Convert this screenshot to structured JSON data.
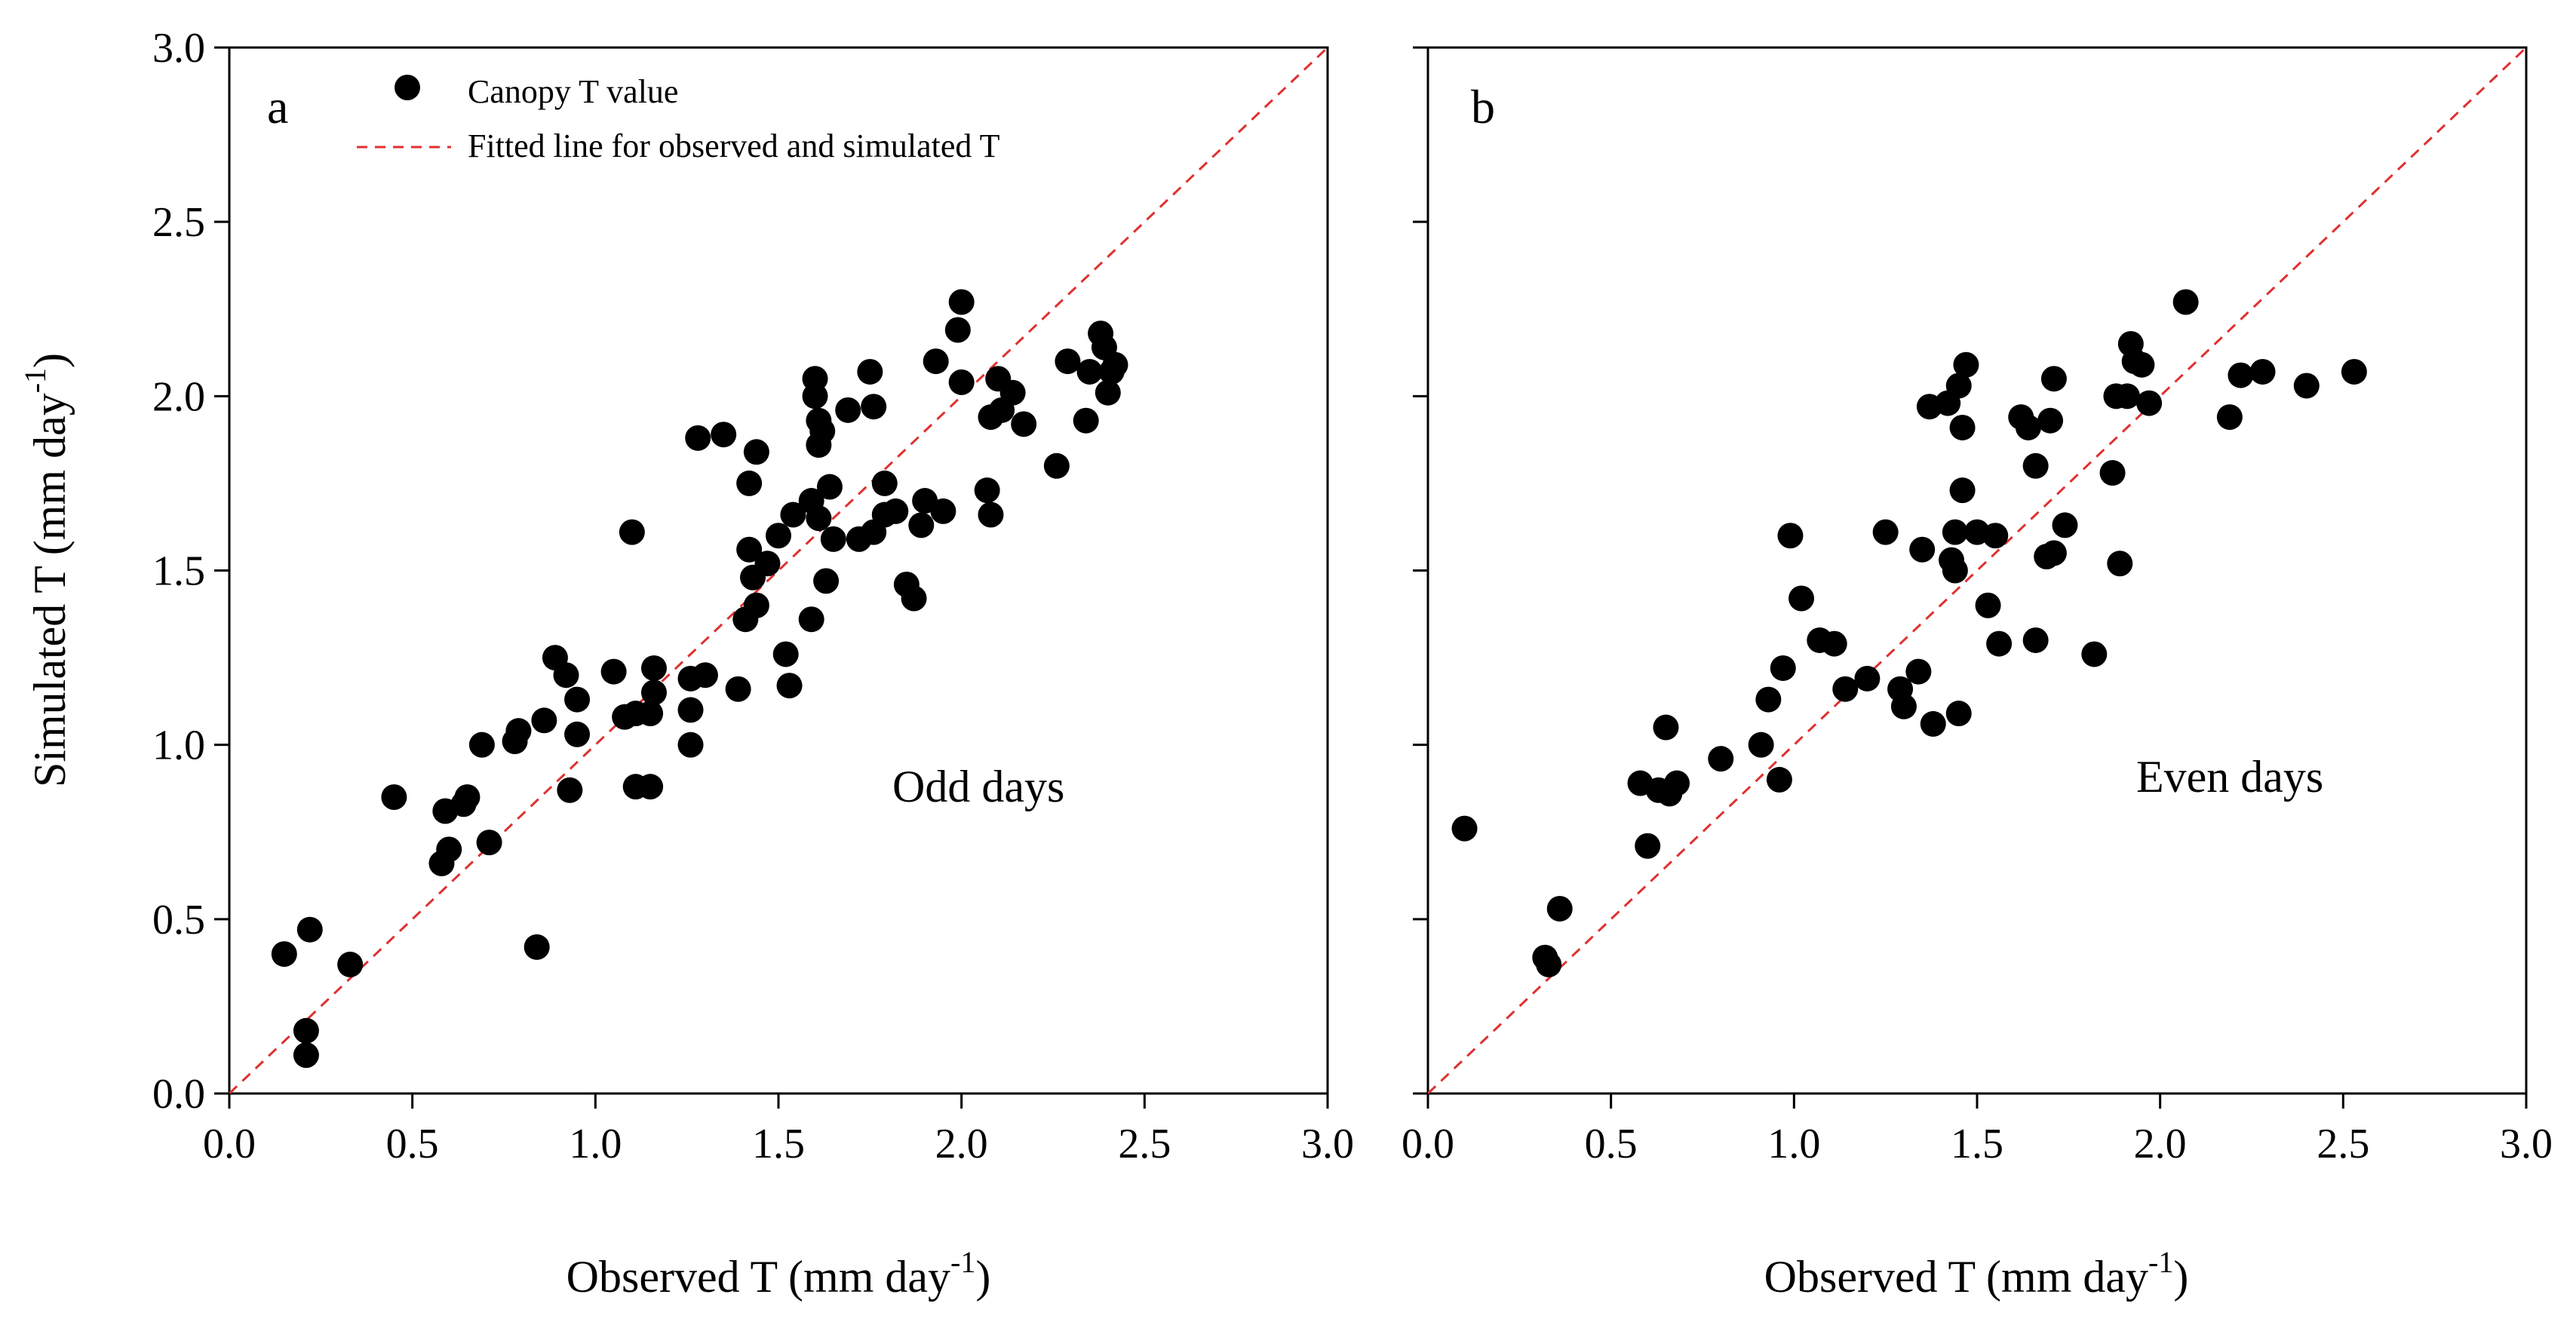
{
  "chart_data": [
    {
      "type": "scatter",
      "panel_label": "a",
      "annotation": "Odd days",
      "xlabel": "Observed T (mm day",
      "xlabel_sup": "-1",
      "xlabel_end": ")",
      "ylabel": "Simulated T (mm day",
      "ylabel_sup": "-1",
      "ylabel_end": ")",
      "xlim": [
        0,
        3.0
      ],
      "ylim": [
        0,
        3.0
      ],
      "xticks": [
        "0.0",
        "0.5",
        "1.0",
        "1.5",
        "2.0",
        "2.5",
        "3.0"
      ],
      "yticks": [
        "0.0",
        "0.5",
        "1.0",
        "1.5",
        "2.0",
        "2.5",
        "3.0"
      ],
      "legend": {
        "points_label": "Canopy T value",
        "line_label": "Fitted line for observed and simulated T",
        "position": "top-left"
      },
      "fit_line": {
        "x": [
          0,
          3.0
        ],
        "y": [
          0,
          3.0
        ],
        "color": "#e03030",
        "style": "dashed"
      },
      "series": [
        {
          "name": "Canopy T value",
          "points": [
            [
              0.15,
              0.4
            ],
            [
              0.21,
              0.18
            ],
            [
              0.21,
              0.11
            ],
            [
              0.22,
              0.47
            ],
            [
              0.33,
              0.37
            ],
            [
              0.45,
              0.85
            ],
            [
              0.58,
              0.66
            ],
            [
              0.59,
              0.81
            ],
            [
              0.6,
              0.7
            ],
            [
              0.64,
              0.83
            ],
            [
              0.65,
              0.85
            ],
            [
              0.69,
              1.0
            ],
            [
              0.71,
              0.72
            ],
            [
              0.78,
              1.01
            ],
            [
              0.79,
              1.04
            ],
            [
              0.84,
              0.42
            ],
            [
              0.86,
              1.07
            ],
            [
              0.89,
              1.25
            ],
            [
              0.92,
              1.2
            ],
            [
              0.93,
              0.87
            ],
            [
              0.95,
              1.13
            ],
            [
              0.95,
              1.03
            ],
            [
              1.05,
              1.21
            ],
            [
              1.08,
              1.08
            ],
            [
              1.1,
              1.61
            ],
            [
              1.11,
              1.09
            ],
            [
              1.11,
              0.88
            ],
            [
              1.15,
              0.88
            ],
            [
              1.15,
              1.09
            ],
            [
              1.16,
              1.22
            ],
            [
              1.16,
              1.15
            ],
            [
              1.26,
              1.19
            ],
            [
              1.26,
              1.1
            ],
            [
              1.26,
              1.0
            ],
            [
              1.28,
              1.88
            ],
            [
              1.3,
              1.2
            ],
            [
              1.35,
              1.89
            ],
            [
              1.39,
              1.16
            ],
            [
              1.41,
              1.36
            ],
            [
              1.42,
              1.75
            ],
            [
              1.42,
              1.56
            ],
            [
              1.43,
              1.48
            ],
            [
              1.44,
              1.84
            ],
            [
              1.44,
              1.4
            ],
            [
              1.47,
              1.52
            ],
            [
              1.5,
              1.6
            ],
            [
              1.52,
              1.26
            ],
            [
              1.53,
              1.17
            ],
            [
              1.54,
              1.66
            ],
            [
              1.59,
              1.36
            ],
            [
              1.59,
              1.7
            ],
            [
              1.6,
              2.05
            ],
            [
              1.6,
              2.0
            ],
            [
              1.61,
              1.93
            ],
            [
              1.61,
              1.86
            ],
            [
              1.61,
              1.65
            ],
            [
              1.62,
              1.9
            ],
            [
              1.63,
              1.47
            ],
            [
              1.64,
              1.74
            ],
            [
              1.65,
              1.59
            ],
            [
              1.69,
              1.96
            ],
            [
              1.72,
              1.59
            ],
            [
              1.75,
              2.07
            ],
            [
              1.76,
              1.97
            ],
            [
              1.76,
              1.61
            ],
            [
              1.79,
              1.75
            ],
            [
              1.79,
              1.66
            ],
            [
              1.82,
              1.67
            ],
            [
              1.85,
              1.46
            ],
            [
              1.87,
              1.42
            ],
            [
              1.89,
              1.63
            ],
            [
              1.9,
              1.7
            ],
            [
              1.93,
              2.1
            ],
            [
              1.95,
              1.67
            ],
            [
              1.99,
              2.19
            ],
            [
              2.0,
              2.27
            ],
            [
              2.0,
              2.04
            ],
            [
              2.07,
              1.73
            ],
            [
              2.08,
              1.66
            ],
            [
              2.08,
              1.94
            ],
            [
              2.1,
              2.05
            ],
            [
              2.11,
              1.96
            ],
            [
              2.14,
              2.01
            ],
            [
              2.17,
              1.92
            ],
            [
              2.26,
              1.8
            ],
            [
              2.29,
              2.1
            ],
            [
              2.34,
              1.93
            ],
            [
              2.35,
              2.07
            ],
            [
              2.38,
              2.18
            ],
            [
              2.39,
              2.14
            ],
            [
              2.4,
              2.01
            ],
            [
              2.41,
              2.07
            ],
            [
              2.42,
              2.09
            ]
          ]
        }
      ]
    },
    {
      "type": "scatter",
      "panel_label": "b",
      "annotation": "Even days",
      "xlabel": "Observed T (mm day",
      "xlabel_sup": "-1",
      "xlabel_end": ")",
      "xlim": [
        0,
        3.0
      ],
      "ylim": [
        0,
        3.0
      ],
      "xticks": [
        "0.0",
        "0.5",
        "1.0",
        "1.5",
        "2.0",
        "2.5",
        "3.0"
      ],
      "fit_line": {
        "x": [
          0,
          3.0
        ],
        "y": [
          0,
          3.0
        ],
        "color": "#e03030",
        "style": "dashed"
      },
      "series": [
        {
          "name": "Canopy T value",
          "points": [
            [
              0.1,
              0.76
            ],
            [
              0.32,
              0.39
            ],
            [
              0.33,
              0.37
            ],
            [
              0.36,
              0.53
            ],
            [
              0.58,
              0.89
            ],
            [
              0.6,
              0.71
            ],
            [
              0.63,
              0.87
            ],
            [
              0.65,
              1.05
            ],
            [
              0.66,
              0.86
            ],
            [
              0.68,
              0.89
            ],
            [
              0.8,
              0.96
            ],
            [
              0.91,
              1.0
            ],
            [
              0.93,
              1.13
            ],
            [
              0.96,
              0.9
            ],
            [
              0.97,
              1.22
            ],
            [
              0.99,
              1.6
            ],
            [
              1.02,
              1.42
            ],
            [
              1.07,
              1.3
            ],
            [
              1.11,
              1.29
            ],
            [
              1.14,
              1.16
            ],
            [
              1.2,
              1.19
            ],
            [
              1.25,
              1.61
            ],
            [
              1.29,
              1.16
            ],
            [
              1.3,
              1.11
            ],
            [
              1.34,
              1.21
            ],
            [
              1.35,
              1.56
            ],
            [
              1.37,
              1.97
            ],
            [
              1.38,
              1.06
            ],
            [
              1.42,
              1.98
            ],
            [
              1.43,
              1.53
            ],
            [
              1.44,
              1.61
            ],
            [
              1.44,
              1.5
            ],
            [
              1.45,
              2.03
            ],
            [
              1.45,
              1.09
            ],
            [
              1.46,
              1.91
            ],
            [
              1.46,
              1.73
            ],
            [
              1.47,
              2.09
            ],
            [
              1.5,
              1.61
            ],
            [
              1.53,
              1.4
            ],
            [
              1.55,
              1.6
            ],
            [
              1.56,
              1.29
            ],
            [
              1.62,
              1.94
            ],
            [
              1.64,
              1.91
            ],
            [
              1.66,
              1.8
            ],
            [
              1.66,
              1.3
            ],
            [
              1.69,
              1.54
            ],
            [
              1.7,
              1.93
            ],
            [
              1.71,
              2.05
            ],
            [
              1.71,
              1.55
            ],
            [
              1.74,
              1.63
            ],
            [
              1.82,
              1.26
            ],
            [
              1.87,
              1.78
            ],
            [
              1.88,
              2.0
            ],
            [
              1.89,
              1.52
            ],
            [
              1.91,
              2.0
            ],
            [
              1.92,
              2.15
            ],
            [
              1.93,
              2.1
            ],
            [
              1.95,
              2.09
            ],
            [
              1.97,
              1.98
            ],
            [
              2.07,
              2.27
            ],
            [
              2.19,
              1.94
            ],
            [
              2.22,
              2.06
            ],
            [
              2.28,
              2.07
            ],
            [
              2.4,
              2.03
            ],
            [
              2.53,
              2.07
            ]
          ]
        }
      ]
    }
  ]
}
